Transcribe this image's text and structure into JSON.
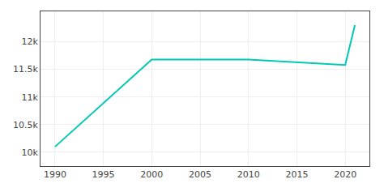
{
  "chart_data": {
    "type": "line",
    "x": [
      1990,
      2000,
      2010,
      2020,
      2021
    ],
    "values": [
      10100,
      11679,
      11679,
      11578,
      12300
    ],
    "color": "#00c9b1",
    "xlim": [
      1988.5,
      2022.5
    ],
    "xticks": [
      1990,
      1995,
      2000,
      2005,
      2010,
      2015,
      2020
    ],
    "ylim": [
      9750,
      12550
    ],
    "yticks": [
      {
        "value": 10000,
        "label": "10k"
      },
      {
        "value": 10500,
        "label": "10.5k"
      },
      {
        "value": 11000,
        "label": "11k"
      },
      {
        "value": 11500,
        "label": "11.5k"
      },
      {
        "value": 12000,
        "label": "12k"
      }
    ],
    "grid": true
  }
}
